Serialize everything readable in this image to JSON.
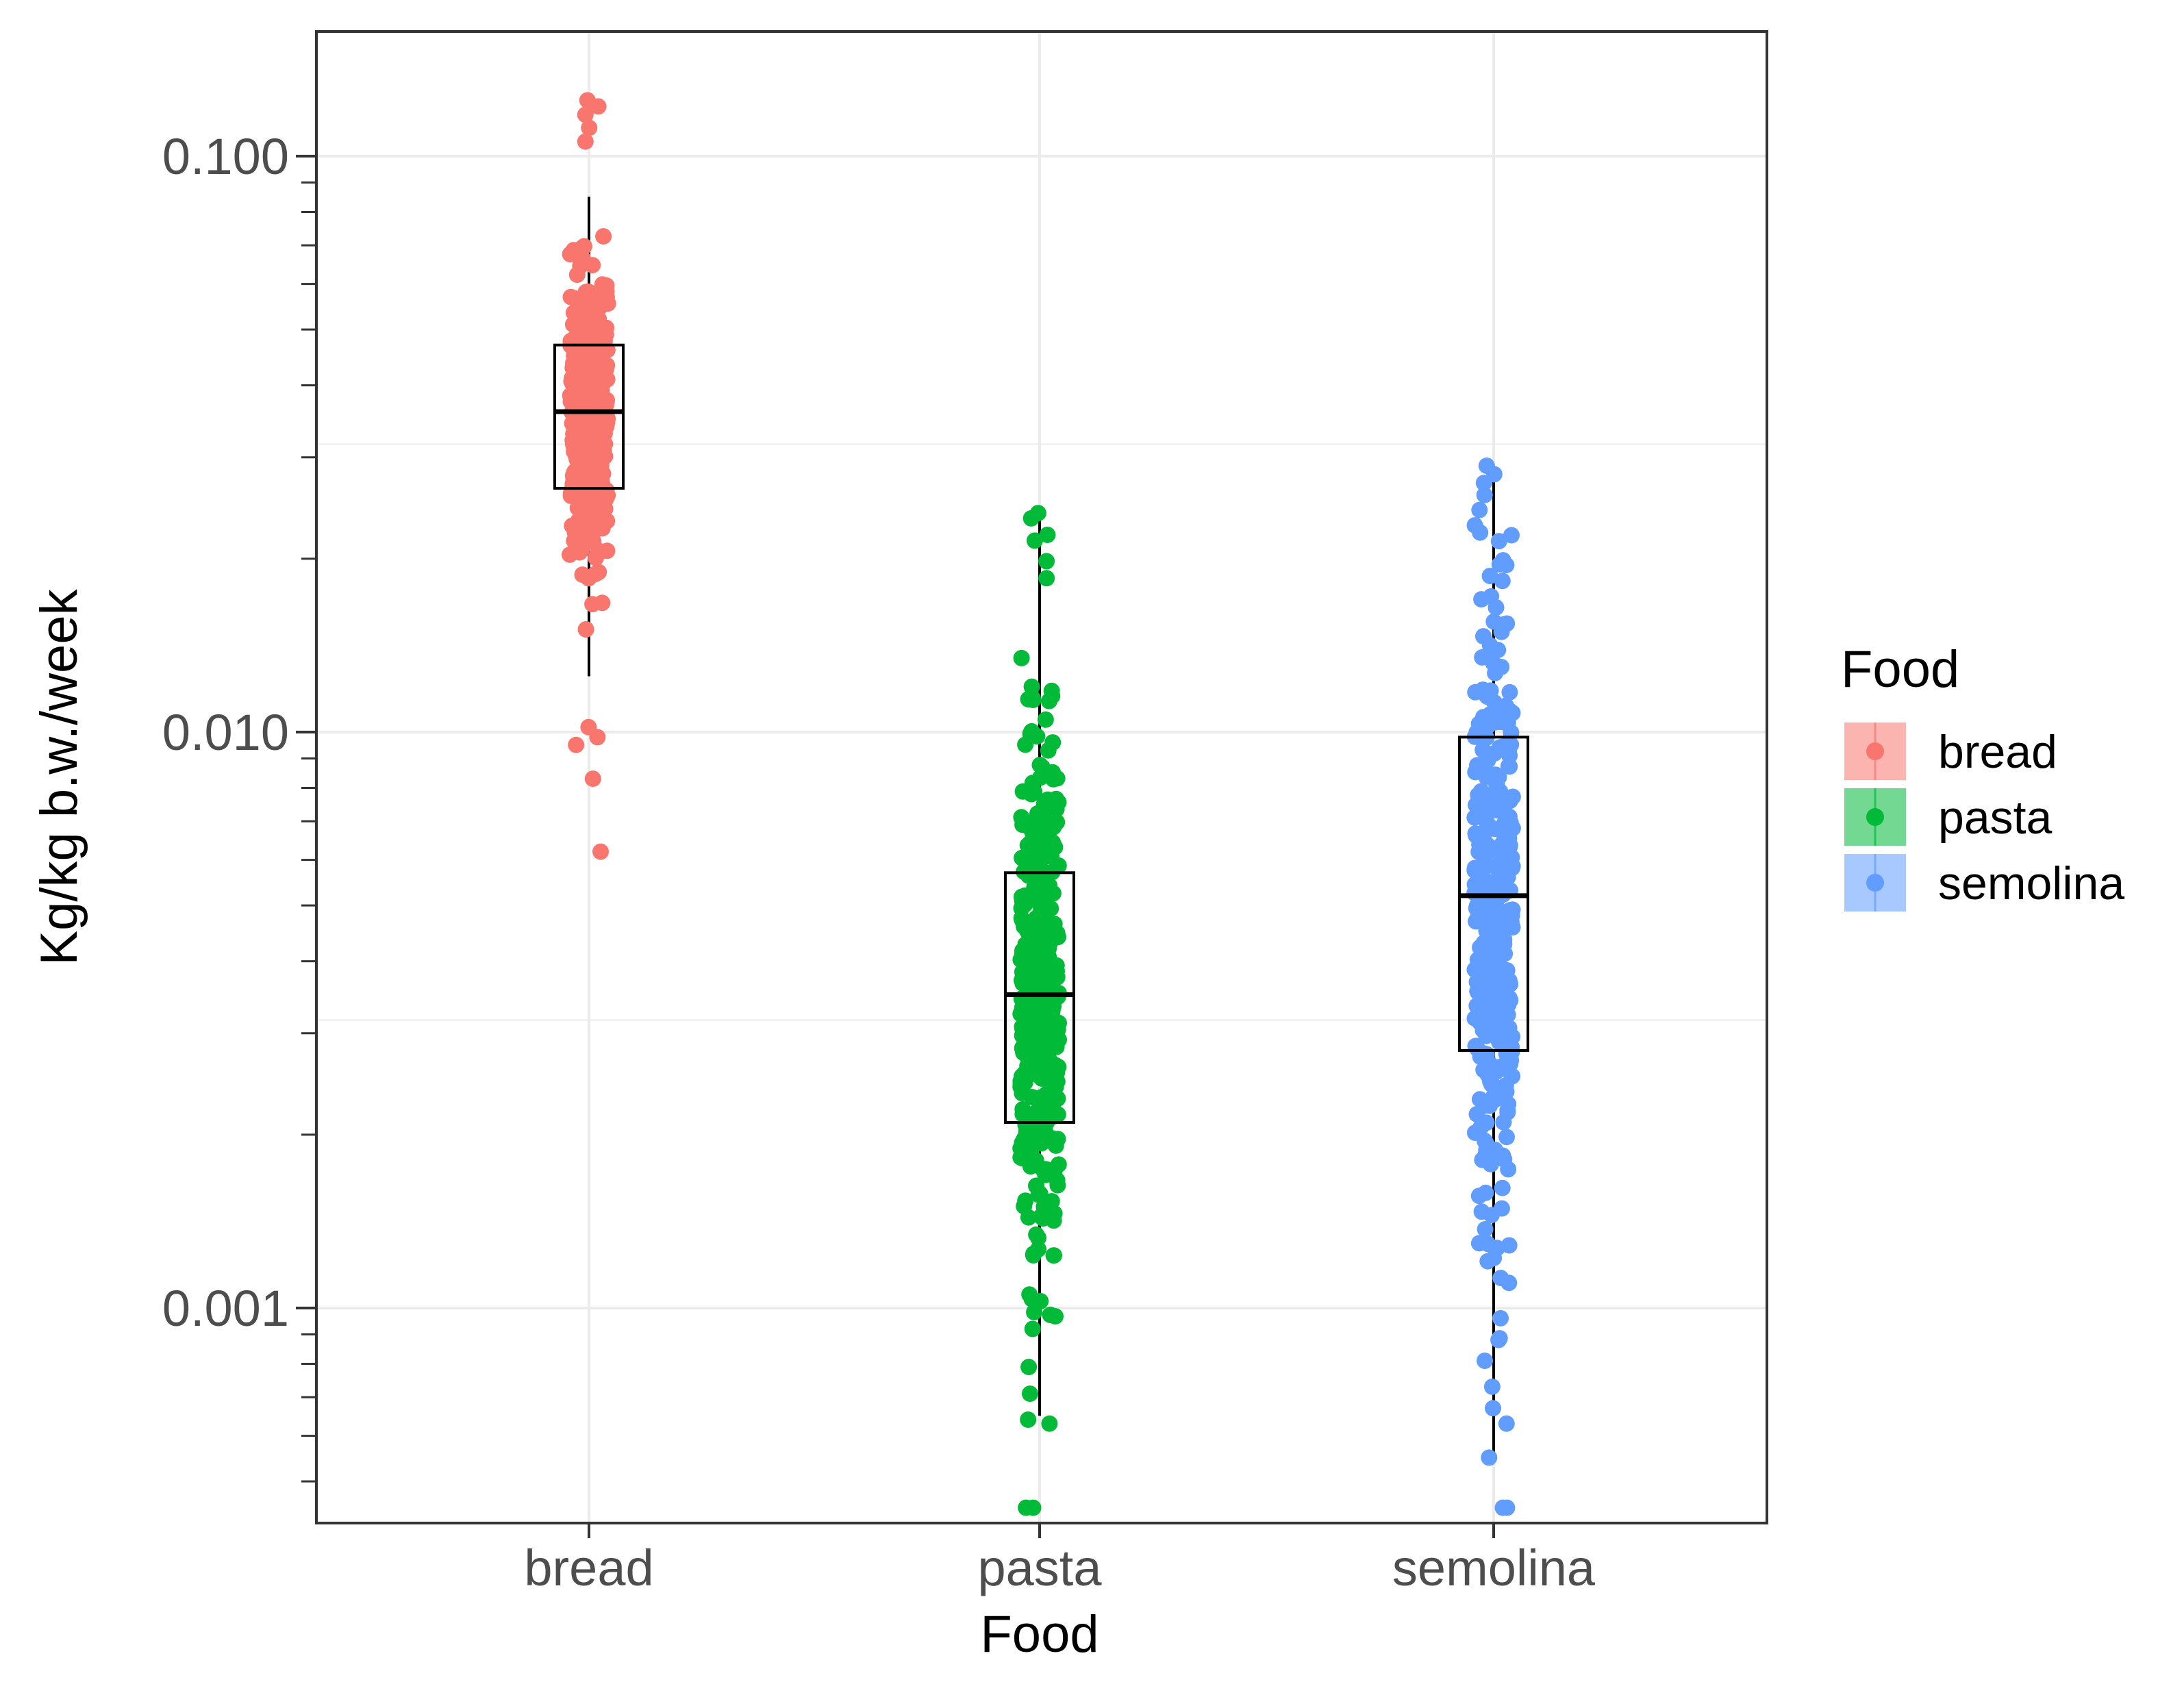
{
  "chart_data": {
    "type": "boxplot",
    "xlabel": "Food",
    "ylabel": "Kg/kg b.w./week",
    "y_scale": "log10",
    "ylim": [
      0.00045,
      0.16
    ],
    "y_ticks": [
      {
        "value": 0.001,
        "label": "0.001"
      },
      {
        "value": 0.01,
        "label": "0.010"
      },
      {
        "value": 0.1,
        "label": "0.100"
      }
    ],
    "categories": [
      "bread",
      "pasta",
      "semolina"
    ],
    "legend": {
      "title": "Food",
      "position": "right"
    },
    "series": [
      {
        "name": "bread",
        "color": "#F8766D",
        "whisker_low": 0.0125,
        "q1": 0.0265,
        "median": 0.036,
        "q3": 0.047,
        "whisker_high": 0.085,
        "points_min": 0.0062,
        "points_max": 0.125,
        "extra_points": [
          0.0062,
          0.0083,
          0.0095,
          0.0098,
          0.0102,
          0.106,
          0.112,
          0.118,
          0.122,
          0.125
        ]
      },
      {
        "name": "pasta",
        "color": "#00BA38",
        "whisker_low": 0.00065,
        "q1": 0.0021,
        "median": 0.0035,
        "q3": 0.0057,
        "whisker_high": 0.024,
        "points_min": 0.00045,
        "points_max": 0.024,
        "extra_points": [
          0.00045,
          0.00045,
          0.00063,
          0.00064,
          0.00071,
          0.00079,
          0.00092,
          0.0185,
          0.0198,
          0.0215,
          0.022,
          0.0235,
          0.024
        ]
      },
      {
        "name": "semolina",
        "color": "#619CFF",
        "whisker_low": 0.00055,
        "q1": 0.0028,
        "median": 0.0052,
        "q3": 0.0098,
        "whisker_high": 0.029,
        "points_min": 0.00045,
        "points_max": 0.029,
        "extra_points": [
          0.00045,
          0.00045,
          0.00055,
          0.00063,
          0.00067,
          0.00073,
          0.00081,
          0.00088,
          0.00096,
          0.0172,
          0.0183,
          0.0195,
          0.029
        ]
      }
    ]
  }
}
